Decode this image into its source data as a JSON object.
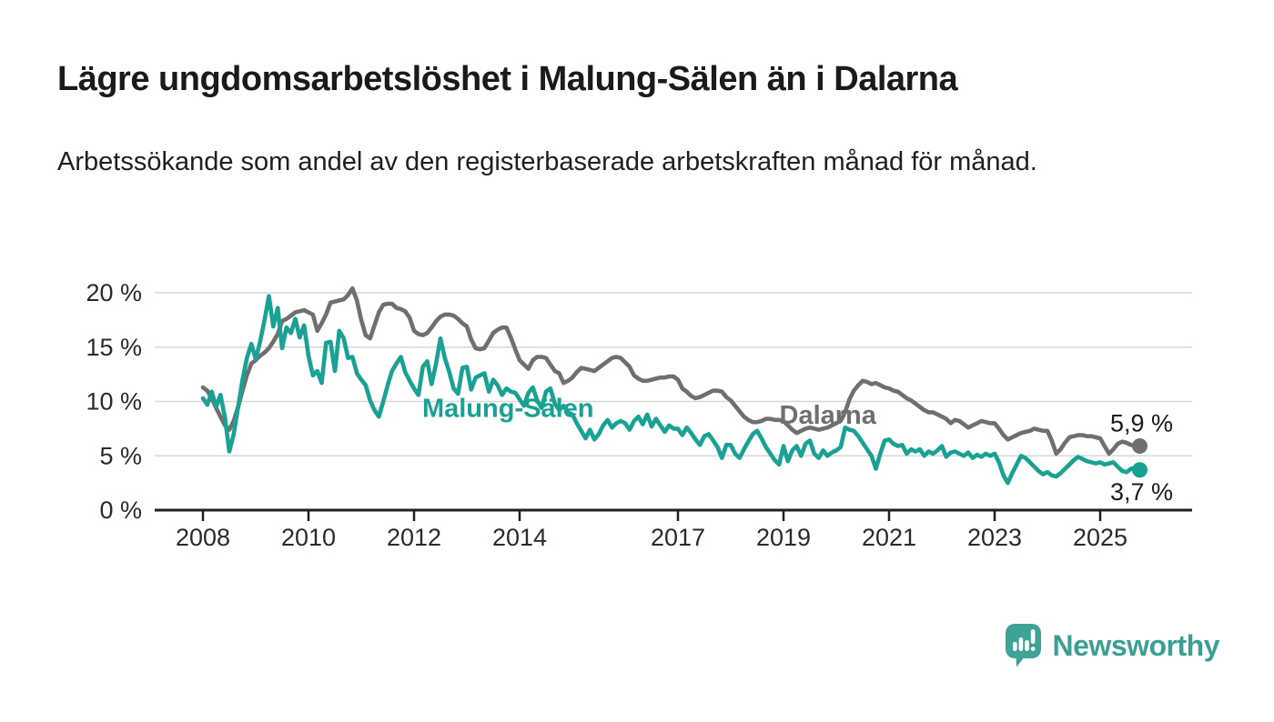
{
  "header": {
    "title": "Lägre ungdomsarbetslöshet i Malung-Sälen än i Dalarna",
    "subtitle": "Arbetssökande som andel av den registerbaserade arbetskraften månad för månad."
  },
  "chart_data": {
    "type": "line",
    "title": "Lägre ungdomsarbetslöshet i Malung-Sälen än i Dalarna",
    "xlabel": "",
    "ylabel": "Arbetssökande som andel av den registerbaserade arbetskraften",
    "x_start_year": 2008,
    "x_start_month": 1,
    "x_step": "monthly",
    "x_end_label_year": 2025.75,
    "ylim": [
      0,
      21
    ],
    "grid": "horizontal",
    "legend_position": "inline-labels",
    "y_axis": {
      "tick_values": [
        0,
        5,
        10,
        15,
        20
      ],
      "tick_labels": [
        "0 %",
        "5 %",
        "10 %",
        "15 %",
        "20 %"
      ]
    },
    "x_axis": {
      "tick_years": [
        2008,
        2010,
        2012,
        2014,
        2017,
        2019,
        2021,
        2023,
        2025
      ],
      "tick_labels": [
        "2008",
        "2010",
        "2012",
        "2014",
        "2017",
        "2019",
        "2021",
        "2023",
        "2025"
      ]
    },
    "series": [
      {
        "name": "Dalarna",
        "color": "#6f6f6f",
        "end_label": "5,9 %",
        "end_value": 5.9,
        "end_label_position": "above",
        "values": [
          11.3,
          11.0,
          10.3,
          9.4,
          8.6,
          7.8,
          7.4,
          8.2,
          9.5,
          11.0,
          12.4,
          13.5,
          13.8,
          14.2,
          14.5,
          14.9,
          15.5,
          16.2,
          17.4,
          17.6,
          17.9,
          18.2,
          18.3,
          18.4,
          18.2,
          18.0,
          16.5,
          17.2,
          18.0,
          19.1,
          19.2,
          19.3,
          19.4,
          19.8,
          20.4,
          19.3,
          17.5,
          16.1,
          15.8,
          17.0,
          18.2,
          18.9,
          19.0,
          19.0,
          18.6,
          18.5,
          18.3,
          17.7,
          16.5,
          16.2,
          16.1,
          16.3,
          16.8,
          17.4,
          17.8,
          18.0,
          18.0,
          17.9,
          17.6,
          17.2,
          16.9,
          15.7,
          14.9,
          14.8,
          14.9,
          15.6,
          16.3,
          16.6,
          16.8,
          16.8,
          15.9,
          14.8,
          13.8,
          13.4,
          13.0,
          13.8,
          14.1,
          14.1,
          14.0,
          13.4,
          12.8,
          12.6,
          11.7,
          11.9,
          12.2,
          12.7,
          13.1,
          13.0,
          12.9,
          12.8,
          13.1,
          13.4,
          13.7,
          14.0,
          14.1,
          14.0,
          13.6,
          13.2,
          12.4,
          12.1,
          11.9,
          11.9,
          12.0,
          12.1,
          12.2,
          12.2,
          12.3,
          12.3,
          12.0,
          11.2,
          10.9,
          10.5,
          10.3,
          10.4,
          10.6,
          10.8,
          11.0,
          11.0,
          10.9,
          10.4,
          10.1,
          9.6,
          9.1,
          8.6,
          8.3,
          8.1,
          8.1,
          8.2,
          8.4,
          8.4,
          8.3,
          8.3,
          8.2,
          7.8,
          7.4,
          7.1,
          7.3,
          7.5,
          7.6,
          7.5,
          7.4,
          7.5,
          7.6,
          7.8,
          8.0,
          8.2,
          9.0,
          10.2,
          11.0,
          11.5,
          11.9,
          11.8,
          11.6,
          11.7,
          11.5,
          11.3,
          11.2,
          11.0,
          10.9,
          10.6,
          10.3,
          10.1,
          9.8,
          9.5,
          9.2,
          9.0,
          9.0,
          8.8,
          8.6,
          8.4,
          8.0,
          8.3,
          8.2,
          7.9,
          7.6,
          7.8,
          8.0,
          8.2,
          8.1,
          8.0,
          8.0,
          7.5,
          6.9,
          6.5,
          6.7,
          6.9,
          7.1,
          7.2,
          7.3,
          7.5,
          7.4,
          7.3,
          7.3,
          6.4,
          5.2,
          5.6,
          6.2,
          6.7,
          6.8,
          6.9,
          6.9,
          6.8,
          6.8,
          6.7,
          6.6,
          5.9,
          5.2,
          5.6,
          6.1,
          6.3,
          6.2,
          6.0,
          5.9,
          5.9
        ]
      },
      {
        "name": "Malung-Sälen",
        "color": "#19a294",
        "end_label": "3,7 %",
        "end_value": 3.7,
        "end_label_position": "below",
        "values": [
          10.3,
          9.7,
          10.9,
          9.5,
          10.6,
          8.5,
          5.4,
          7.0,
          9.5,
          12.0,
          14.0,
          15.3,
          13.9,
          15.5,
          17.5,
          19.7,
          16.9,
          18.6,
          14.9,
          16.8,
          16.3,
          17.6,
          15.9,
          17.0,
          14.2,
          12.4,
          12.8,
          11.7,
          15.4,
          15.5,
          12.8,
          16.5,
          15.8,
          14.0,
          14.1,
          12.6,
          12.0,
          11.5,
          10.1,
          9.2,
          8.6,
          10.0,
          11.5,
          12.8,
          13.5,
          14.1,
          12.7,
          11.9,
          11.2,
          10.6,
          13.2,
          13.7,
          11.6,
          13.5,
          15.8,
          14.0,
          12.7,
          11.2,
          10.7,
          13.1,
          13.2,
          11.1,
          12.2,
          12.4,
          12.6,
          10.9,
          12.0,
          11.5,
          10.6,
          11.2,
          10.9,
          10.8,
          10.2,
          9.6,
          10.8,
          11.3,
          10.1,
          9.4,
          10.9,
          11.2,
          9.8,
          9.2,
          9.6,
          9.0,
          8.8,
          8.0,
          7.3,
          6.6,
          7.4,
          6.5,
          7.0,
          7.8,
          8.3,
          7.6,
          8.0,
          8.2,
          8.0,
          7.4,
          8.2,
          8.6,
          7.9,
          8.8,
          7.7,
          8.4,
          7.8,
          7.2,
          7.8,
          7.5,
          7.5,
          6.9,
          7.6,
          7.1,
          6.5,
          6.0,
          6.8,
          7.0,
          6.4,
          5.8,
          4.8,
          6.0,
          6.0,
          5.2,
          4.8,
          5.6,
          6.3,
          7.0,
          7.3,
          6.6,
          5.8,
          5.2,
          4.6,
          4.2,
          5.9,
          4.5,
          5.5,
          5.9,
          5.0,
          6.1,
          6.4,
          5.2,
          4.8,
          5.5,
          5.0,
          5.3,
          5.5,
          5.8,
          7.6,
          7.4,
          7.3,
          6.8,
          6.2,
          5.6,
          5.0,
          3.8,
          5.2,
          6.4,
          6.5,
          6.1,
          5.9,
          6.0,
          5.2,
          5.6,
          5.4,
          5.6,
          5.0,
          5.4,
          5.2,
          5.5,
          5.9,
          4.9,
          5.3,
          5.4,
          5.2,
          5.0,
          5.3,
          4.8,
          5.1,
          4.9,
          5.2,
          5.0,
          5.2,
          4.4,
          3.2,
          2.5,
          3.4,
          4.2,
          5.0,
          4.8,
          4.4,
          4.0,
          3.6,
          3.3,
          3.5,
          3.2,
          3.1,
          3.4,
          3.8,
          4.2,
          4.6,
          4.9,
          4.7,
          4.5,
          4.4,
          4.3,
          4.4,
          4.2,
          4.3,
          4.4,
          4.0,
          3.6,
          3.5,
          3.8,
          3.9,
          3.7
        ]
      }
    ],
    "annotations": [
      {
        "text": "Malung-Sälen",
        "year": 2013.78,
        "value": 9.4,
        "color": "#19a294"
      },
      {
        "text": "Dalarna",
        "year": 2019.84,
        "value": 8.8,
        "color": "#6f6f6f"
      }
    ],
    "colors": {
      "grid": "#d8d8d8",
      "axis": "#1f1f1f",
      "tick_text": "#2a2a2a",
      "value_label_text": "#1a1a1a"
    }
  },
  "footer": {
    "brand": "Newsworthy",
    "brand_color": "#3ba093"
  }
}
